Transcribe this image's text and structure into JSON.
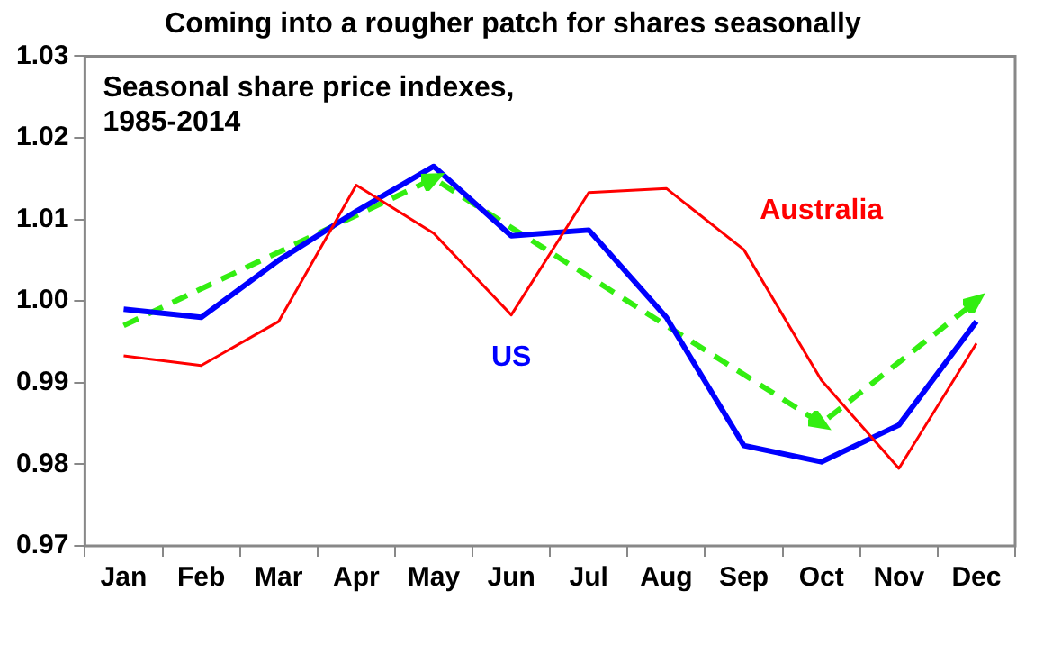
{
  "chart_data": {
    "type": "line",
    "title": "Coming into a rougher patch for shares seasonally",
    "subtitle": "Seasonal share price indexes, 1985-2014",
    "categories": [
      "Jan",
      "Feb",
      "Mar",
      "Apr",
      "May",
      "Jun",
      "Jul",
      "Aug",
      "Sep",
      "Oct",
      "Nov",
      "Dec"
    ],
    "series": [
      {
        "name": "Australia",
        "color": "#ff0000",
        "values": [
          0.9933,
          0.9921,
          0.9975,
          1.0142,
          1.0083,
          0.9983,
          1.0133,
          1.0138,
          1.0063,
          0.9903,
          0.9795,
          0.9948
        ]
      },
      {
        "name": "US",
        "color": "#0000ff",
        "values": [
          0.999,
          0.998,
          1.005,
          1.011,
          1.0165,
          1.008,
          1.0087,
          0.998,
          0.9823,
          0.9803,
          0.9848,
          0.9975
        ]
      },
      {
        "color": "#33ee11",
        "line_style": "dashed",
        "values": [
          0.997,
          null,
          null,
          null,
          1.015,
          null,
          null,
          null,
          null,
          0.985,
          null,
          1.0
        ]
      }
    ],
    "ylim": [
      0.97,
      1.03
    ],
    "yticks": [
      {
        "value": 0.97,
        "label": "0.97"
      },
      {
        "value": 0.98,
        "label": "0.98"
      },
      {
        "value": 0.99,
        "label": "0.99"
      },
      {
        "value": 1.0,
        "label": "1.00"
      },
      {
        "value": 1.01,
        "label": "1.01"
      },
      {
        "value": 1.02,
        "label": "1.02"
      },
      {
        "value": 1.03,
        "label": "1.03"
      }
    ],
    "grid": false,
    "legend": false
  }
}
